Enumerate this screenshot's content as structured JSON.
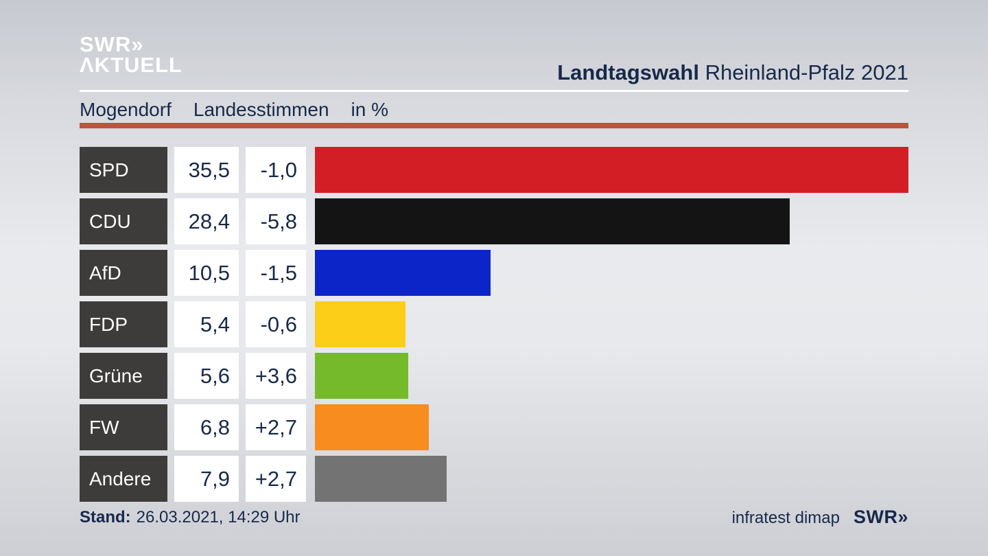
{
  "header": {
    "logo_line1": "SWR»",
    "logo_line2": "ΛKTUELL",
    "title_bold": "Landtagswahl",
    "title_rest": " Rheinland-Pfalz 2021"
  },
  "subtitle": {
    "region": "Mogendorf",
    "vote_type": "Landesstimmen",
    "unit": "in %"
  },
  "footer": {
    "stand_label": "Stand:",
    "stand_value": "26.03.2021, 14:29 Uhr",
    "source": "infratest dimap",
    "brand": "SWR»"
  },
  "colors": {
    "text_navy": "#17294a",
    "party_box_bg": "#3d3c3a",
    "value_box_bg": "#ffffff",
    "red_rule": "#c1513a",
    "white_rule": "#ffffff"
  },
  "chart_data": {
    "type": "bar",
    "orientation": "horizontal",
    "title": "Landtagswahl Rheinland-Pfalz 2021 — Mogendorf, Landesstimmen in %",
    "unit": "%",
    "max_value": 35.5,
    "categories": [
      "SPD",
      "CDU",
      "AfD",
      "FDP",
      "Grüne",
      "FW",
      "Andere"
    ],
    "values": [
      35.5,
      28.4,
      10.5,
      5.4,
      5.6,
      6.8,
      7.9
    ],
    "changes": [
      -1.0,
      -5.8,
      -1.5,
      -0.6,
      3.6,
      2.7,
      2.7
    ],
    "rows": [
      {
        "party": "SPD",
        "value_label": "35,5",
        "change_label": "-1,0",
        "color": "#d21e24"
      },
      {
        "party": "CDU",
        "value_label": "28,4",
        "change_label": "-5,8",
        "color": "#141414"
      },
      {
        "party": "AfD",
        "value_label": "10,5",
        "change_label": "-1,5",
        "color": "#0c25c8"
      },
      {
        "party": "FDP",
        "value_label": "5,4",
        "change_label": "-0,6",
        "color": "#fcce17"
      },
      {
        "party": "Grüne",
        "value_label": "5,6",
        "change_label": "+3,6",
        "color": "#74ba2b"
      },
      {
        "party": "FW",
        "value_label": "6,8",
        "change_label": "+2,7",
        "color": "#f88c1f"
      },
      {
        "party": "Andere",
        "value_label": "7,9",
        "change_label": "+2,7",
        "color": "#737373"
      }
    ]
  }
}
